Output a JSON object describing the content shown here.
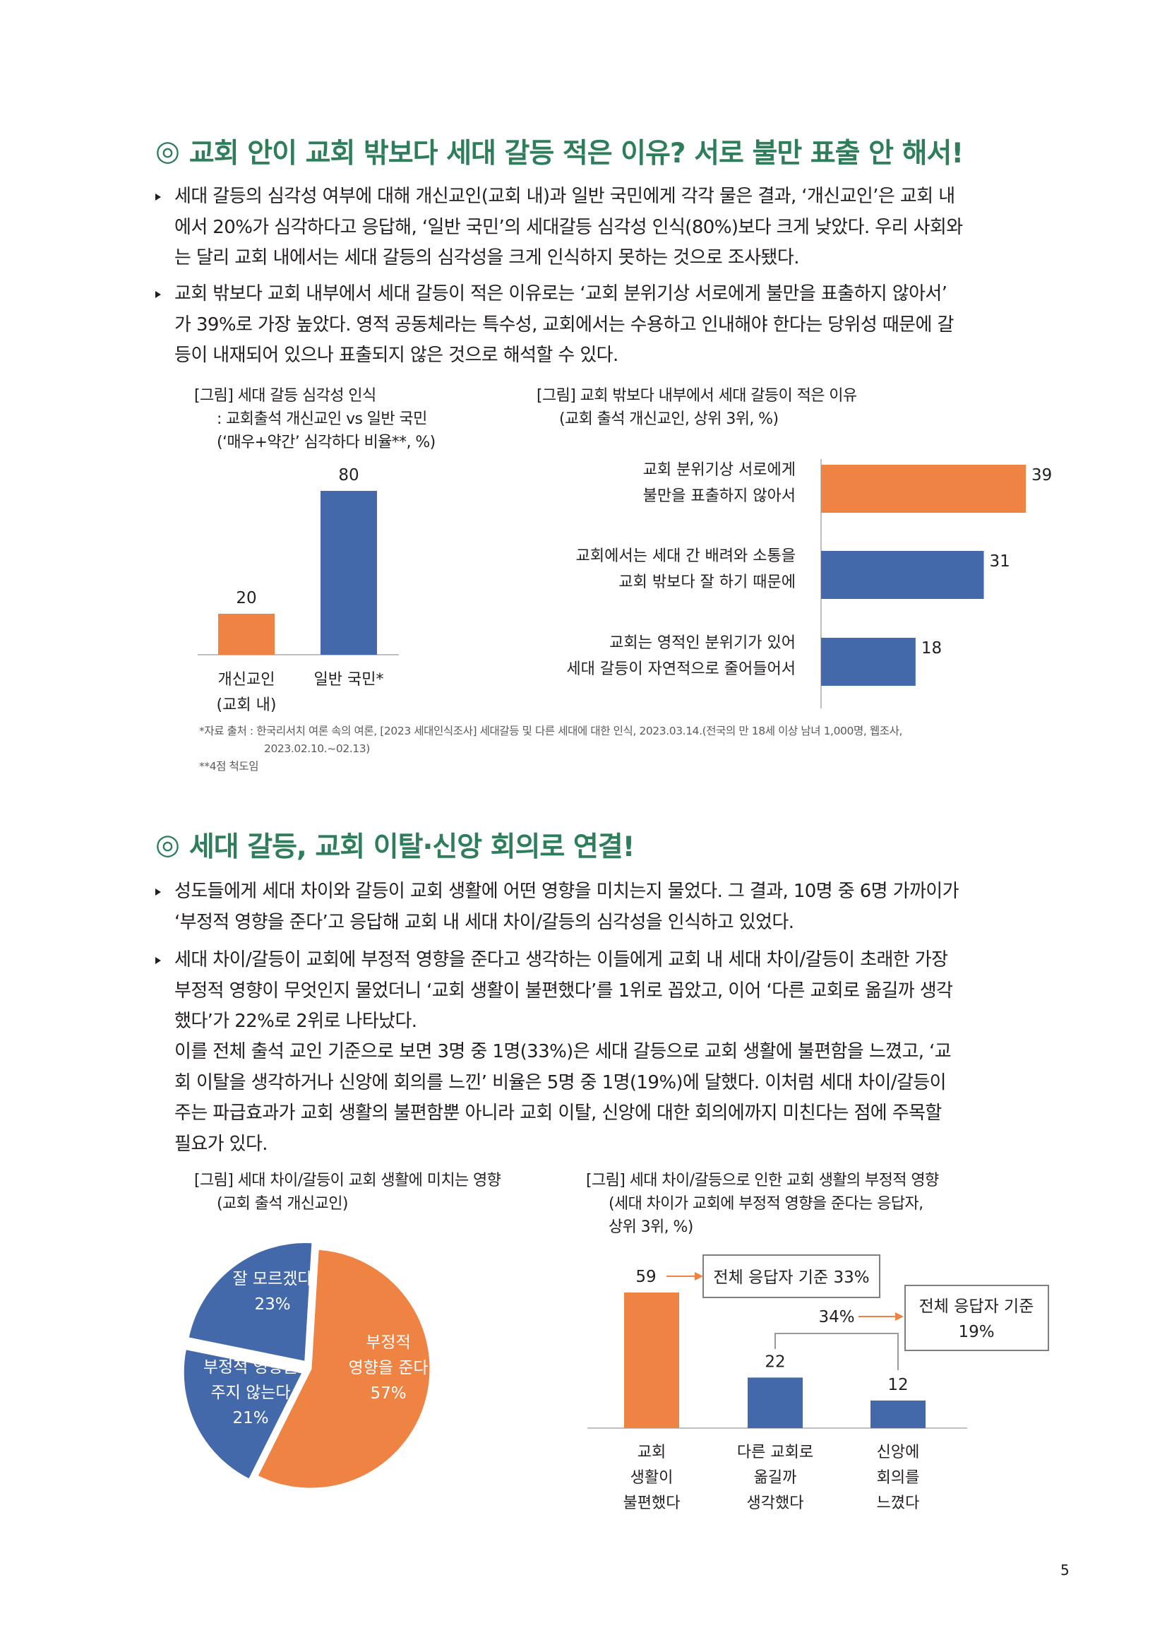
{
  "page_number": "5",
  "section1": {
    "mark": "◎",
    "heading": "교회 안이 교회 밖보다 세대 갈등 적은 이유? 서로 불만 표출 안 해서!",
    "bullets": [
      {
        "lines": [
          "세대 갈등의 심각성 여부에 대해 개신교인(교회 내)과 일반 국민에게 각각 물은 결과, ‘개신교인’은 교회 내",
          "에서 20%가 심각하다고 응답해, ‘일반 국민’의 세대갈등 심각성 인식(80%)보다 크게 낮았다. 우리 사회와",
          "는 달리 교회 내에서는 세대 갈등의 심각성을 크게 인식하지 못하는 것으로 조사됐다."
        ]
      },
      {
        "lines": [
          "교회 밖보다 교회 내부에서 세대 갈등이 적은 이유로는 ‘교회 분위기상 서로에게 불만을 표출하지 않아서’",
          "가 39%로 가장 높았다. 영적 공동체라는 특수성, 교회에서는 수용하고 인내해야 한다는 당위성 때문에 갈",
          "등이 내재되어 있으나 표출되지 않은 것으로 해석할 수 있다."
        ]
      }
    ],
    "figure1": {
      "caption_lines": [
        "[그림] 세대 갈등 심각성 인식",
        "     : 교회출석 개신교인 vs 일반 국민",
        "     (‘매우+약간’ 심각하다 비율**, %)"
      ]
    },
    "figure2": {
      "caption_lines": [
        "[그림] 교회 밖보다 내부에서 세대 갈등이 적은 이유",
        "     (교회 출석 개신교인, 상위 3위, %)"
      ]
    },
    "source_lines": [
      "*자료 출처 : 한국리서치 여론 속의 여론, [2023 세대인식조사] 세대갈등 및 다른 세대에 대한 인식, 2023.03.14.(전국의 만 18세 이상 남녀 1,000명, 웹조사,",
      "2023.02.10.~02.13)",
      "**4점 척도임"
    ]
  },
  "section2": {
    "mark": "◎",
    "heading": "세대 갈등, 교회 이탈·신앙 회의로 연결!",
    "bullets": [
      {
        "lines": [
          "성도들에게 세대 차이와 갈등이 교회 생활에 어떤 영향을 미치는지 물었다. 그 결과, 10명 중 6명 가까이가",
          "‘부정적 영향을 준다’고 응답해 교회 내 세대 차이/갈등의 심각성을 인식하고 있었다."
        ]
      },
      {
        "lines": [
          "세대 차이/갈등이 교회에 부정적 영향을 준다고 생각하는 이들에게 교회 내 세대 차이/갈등이 초래한 가장",
          "부정적 영향이 무엇인지 물었더니 ‘교회 생활이 불편했다’를 1위로 꼽았고, 이어 ‘다른 교회로 옮길까 생각",
          "했다’가 22%로 2위로 나타났다."
        ]
      }
    ],
    "paragraph_lines": [
      "이를 전체 출석 교인 기준으로 보면 3명 중 1명(33%)은 세대 갈등으로 교회 생활에 불편함을 느꼈고, ‘교",
      "회 이탈을 생각하거나 신앙에 회의를 느낀’ 비율은 5명 중 1명(19%)에 달했다. 이처럼 세대 차이/갈등이",
      "주는 파급효과가 교회 생활의 불편함뿐 아니라 교회 이탈, 신앙에 대한 회의에까지 미친다는 점에 주목할",
      "필요가 있다."
    ],
    "figure3": {
      "caption_lines": [
        "[그림] 세대 차이/갈등이 교회 생활에 미치는 영향",
        "     (교회 출석 개신교인)"
      ]
    },
    "figure4": {
      "caption_lines": [
        "[그림] 세대 차이/갈등으로 인한 교회 생활의 부정적 영향",
        "     (세대 차이가 교회에 부정적 영향을 준다는 응답자,",
        "     상위 3위, %)"
      ]
    }
  },
  "chart_data": [
    {
      "type": "bar",
      "categories": [
        [
          "개신교인",
          "(교회 내)"
        ],
        [
          "일반 국민*"
        ]
      ],
      "values": [
        20,
        80
      ],
      "colors": [
        "#ef8344",
        "#4369ab"
      ],
      "ylim": [
        0,
        80
      ]
    },
    {
      "type": "bar",
      "orientation": "horizontal",
      "categories": [
        [
          "교회 분위기상 서로에게",
          "불만을 표출하지 않아서"
        ],
        [
          "교회에서는 세대 간 배려와 소통을",
          "교회 밖보다 잘 하기 때문에"
        ],
        [
          "교회는 영적인 분위기가 있어",
          "세대 갈등이 자연적으로 줄어들어서"
        ]
      ],
      "values": [
        39,
        31,
        18
      ],
      "colors": [
        "#ef8344",
        "#4369ab",
        "#4369ab"
      ],
      "xlim": [
        0,
        39
      ]
    },
    {
      "type": "pie",
      "slices": [
        {
          "label_lines": [
            "부정적",
            "영향을 준다",
            "57%"
          ],
          "value": 57,
          "color": "#ef8344"
        },
        {
          "label_lines": [
            "부정적 영향을",
            "주지 않는다",
            "21%"
          ],
          "value": 21,
          "color": "#4369ab"
        },
        {
          "label_lines": [
            "잘 모르겠다",
            "23%"
          ],
          "value": 23,
          "color": "#4369ab"
        }
      ]
    },
    {
      "type": "bar",
      "categories": [
        [
          "교회",
          "생활이",
          "불편했다"
        ],
        [
          "다른 교회로",
          "옮길까",
          "생각했다"
        ],
        [
          "신앙에",
          "회의를",
          "느꼈다"
        ]
      ],
      "values": [
        59,
        22,
        12
      ],
      "colors": [
        "#ef8344",
        "#4369ab",
        "#4369ab"
      ],
      "ylim": [
        0,
        59
      ],
      "annotations": [
        {
          "text": "전체 응답자 기준 33%",
          "target": 0
        },
        {
          "text": "34%",
          "targets": [
            1,
            2
          ]
        },
        {
          "text_lines": [
            "전체 응답자 기준",
            "19%"
          ],
          "target": 2
        }
      ]
    }
  ]
}
